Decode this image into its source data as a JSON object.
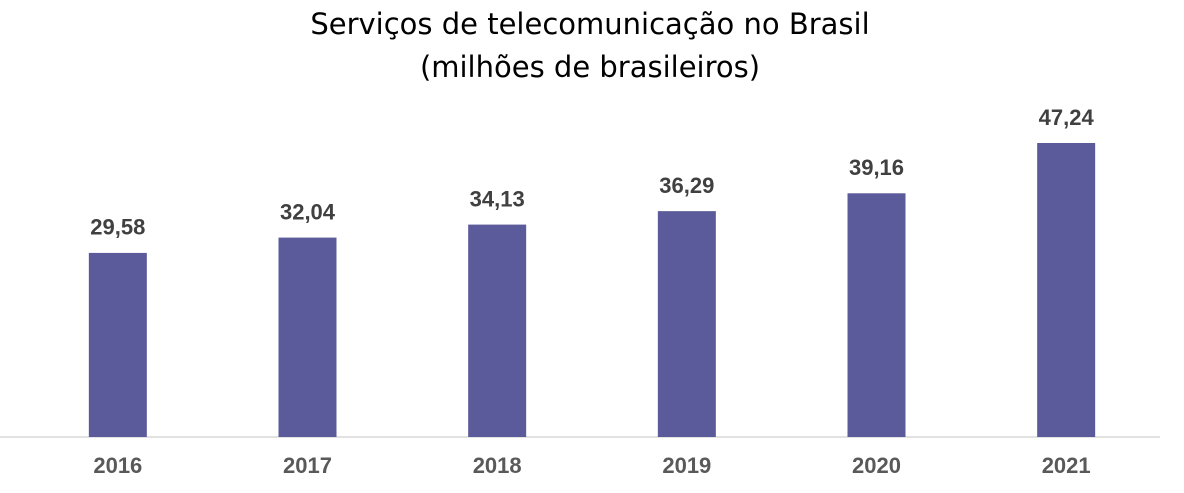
{
  "chart_data": {
    "type": "bar",
    "title": "Serviços de telecomunicação no Brasil",
    "subtitle": "(milhões de brasileiros)",
    "categories": [
      "2016",
      "2017",
      "2018",
      "2019",
      "2020",
      "2021"
    ],
    "values": [
      29.58,
      32.04,
      34.13,
      36.29,
      39.16,
      47.24
    ],
    "value_labels": [
      "29,58",
      "32,04",
      "34,13",
      "36,29",
      "39,16",
      "47,24"
    ],
    "color": "#5b5b9c"
  }
}
